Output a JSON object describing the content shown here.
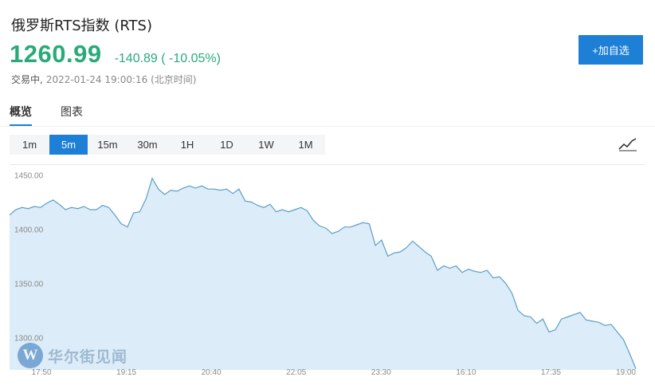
{
  "header": {
    "title": "俄罗斯RTS指数 (RTS)",
    "price": "1260.99",
    "change": "-140.89 ( -10.05%)",
    "status": "交易中,",
    "timestamp": "2022-01-24 19:00:16 (北京时间)",
    "add_button": "+加自选"
  },
  "tabs": [
    {
      "label": "概览",
      "active": true
    },
    {
      "label": "图表",
      "active": false
    }
  ],
  "intervals": [
    {
      "label": "1m",
      "active": false
    },
    {
      "label": "5m",
      "active": true
    },
    {
      "label": "15m",
      "active": false
    },
    {
      "label": "30m",
      "active": false
    },
    {
      "label": "1H",
      "active": false
    },
    {
      "label": "1D",
      "active": false
    },
    {
      "label": "1W",
      "active": false
    },
    {
      "label": "1M",
      "active": false
    }
  ],
  "icons": {
    "chart_toggle": "trend-line-icon",
    "watermark_logo": "wallstreetcn-logo-icon"
  },
  "watermark": {
    "logo_letter": "W",
    "text": "华尔街见闻"
  },
  "colors": {
    "price_change": "#2aaa78",
    "accent": "#1e7fd6",
    "line": "#5b9fc7",
    "area_fill": "#dcecf8"
  },
  "chart_data": {
    "type": "area",
    "title": "",
    "xlabel": "",
    "ylabel": "",
    "ylim": [
      1270,
      1460
    ],
    "y_ticks": [
      1450,
      1400,
      1350,
      1300
    ],
    "y_tick_labels": [
      "1450.00",
      "1400.00",
      "1350.00",
      "1300.00"
    ],
    "x_tick_labels": [
      "17:50",
      "19:15",
      "20:40",
      "22:05",
      "23:30",
      "16:10",
      "17:35",
      "19:00"
    ],
    "grid": false,
    "series": [
      {
        "values": [
          1413,
          1418,
          1420,
          1419,
          1421,
          1420,
          1424,
          1427,
          1423,
          1418,
          1420,
          1419,
          1421,
          1418,
          1418,
          1422,
          1420,
          1413,
          1405,
          1402,
          1415,
          1416,
          1428,
          1447,
          1437,
          1432,
          1436,
          1435,
          1438,
          1440,
          1438,
          1440,
          1437,
          1437,
          1436,
          1437,
          1433,
          1437,
          1426,
          1425,
          1422,
          1420,
          1423,
          1416,
          1418,
          1416,
          1418,
          1420,
          1417,
          1408,
          1403,
          1401,
          1396,
          1398,
          1402,
          1402,
          1404,
          1406,
          1405,
          1385,
          1390,
          1375,
          1378,
          1379,
          1383,
          1389,
          1384,
          1379,
          1375,
          1362,
          1366,
          1364,
          1366,
          1360,
          1363,
          1361,
          1360,
          1362,
          1355,
          1356,
          1350,
          1341,
          1325,
          1320,
          1319,
          1313,
          1317,
          1305,
          1307,
          1317,
          1319,
          1321,
          1323,
          1316,
          1315,
          1314,
          1311,
          1312,
          1305,
          1298,
          1285,
          1271
        ]
      }
    ]
  }
}
